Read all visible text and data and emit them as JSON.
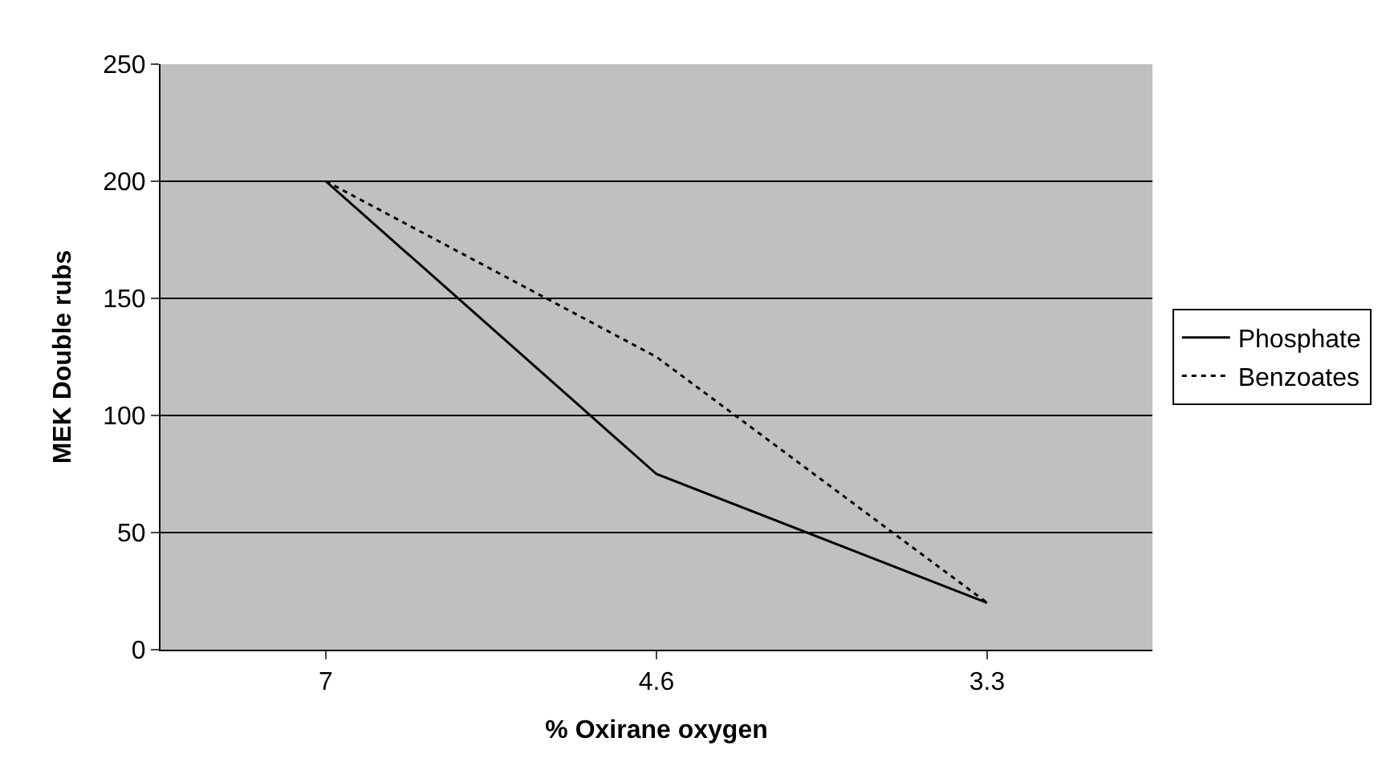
{
  "chart_data": {
    "type": "line",
    "xlabel": "% Oxirane oxygen",
    "ylabel": "MEK Double rubs",
    "categories": [
      "7",
      "4.6",
      "3.3"
    ],
    "series": [
      {
        "name": "Phosphate",
        "color": "#000000",
        "values": [
          200,
          75,
          20
        ],
        "line_style": "solid"
      },
      {
        "name": "Benzoates",
        "color": "#000000",
        "values": [
          200,
          125,
          20
        ],
        "line_style": "dotted"
      }
    ],
    "ylim": [
      0,
      250
    ],
    "yticks": [
      0,
      50,
      100,
      150,
      200,
      250
    ],
    "grid": "y",
    "legend": "right",
    "marker": "none"
  }
}
